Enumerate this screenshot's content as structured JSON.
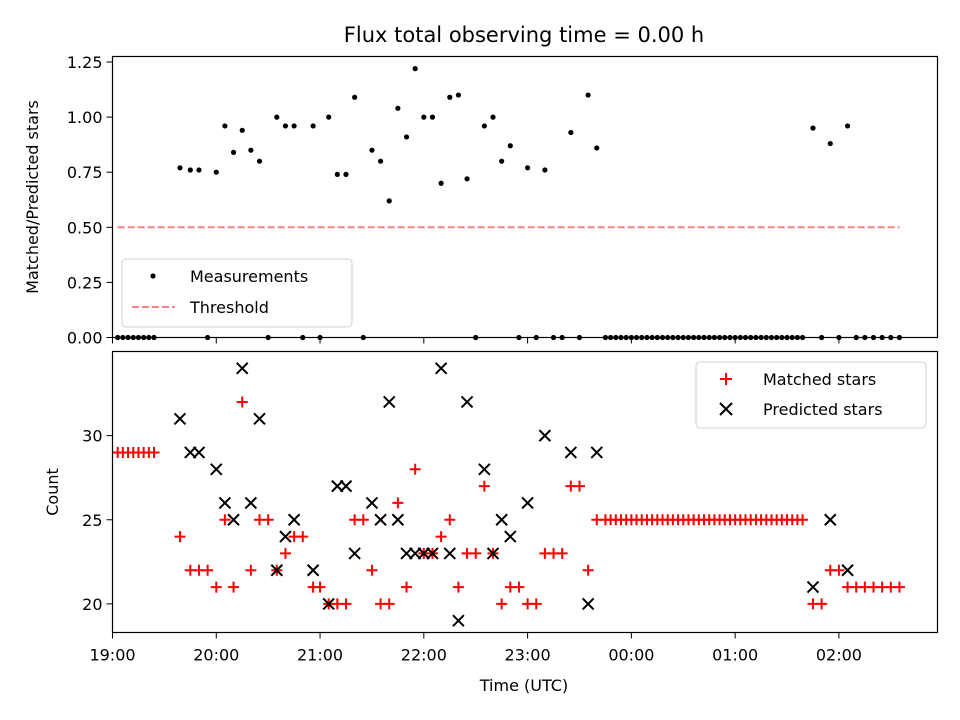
{
  "chart_data": [
    {
      "type": "scatter",
      "title": "Flux total observing time = 0.00 h",
      "xlabel": "",
      "ylabel": "Matched/Predicted stars",
      "xlim": [
        "19:00",
        "02:57"
      ],
      "ylim": [
        0,
        1.275
      ],
      "yticks": [
        "0.00",
        "0.25",
        "0.50",
        "0.75",
        "1.00",
        "1.25"
      ],
      "legend": {
        "placement": "lower-left",
        "entries": [
          "Measurements",
          "Threshold"
        ]
      },
      "series": [
        {
          "name": "Measurements",
          "marker": "dot",
          "color": "#000000",
          "points": [
            [
              "19:03",
              0
            ],
            [
              "19:06",
              0
            ],
            [
              "19:09",
              0
            ],
            [
              "19:12",
              0
            ],
            [
              "19:15",
              0
            ],
            [
              "19:18",
              0
            ],
            [
              "19:21",
              0
            ],
            [
              "19:24",
              0
            ],
            [
              "19:39",
              0.77
            ],
            [
              "19:45",
              0.76
            ],
            [
              "19:50",
              0.76
            ],
            [
              "19:55",
              0
            ],
            [
              "20:00",
              0.75
            ],
            [
              "20:05",
              0.96
            ],
            [
              "20:10",
              0.84
            ],
            [
              "20:15",
              0.94
            ],
            [
              "20:20",
              0.85
            ],
            [
              "20:25",
              0.8
            ],
            [
              "20:30",
              0
            ],
            [
              "20:35",
              1.0
            ],
            [
              "20:40",
              0.96
            ],
            [
              "20:45",
              0.96
            ],
            [
              "20:50",
              0
            ],
            [
              "20:56",
              0.96
            ],
            [
              "21:00",
              0
            ],
            [
              "21:05",
              1.0
            ],
            [
              "21:10",
              0.74
            ],
            [
              "21:15",
              0.74
            ],
            [
              "21:20",
              1.09
            ],
            [
              "21:25",
              0
            ],
            [
              "21:30",
              0.85
            ],
            [
              "21:35",
              0.8
            ],
            [
              "21:40",
              0.62
            ],
            [
              "21:45",
              1.04
            ],
            [
              "21:50",
              0.91
            ],
            [
              "21:55",
              1.22
            ],
            [
              "22:00",
              1.0
            ],
            [
              "22:05",
              1.0
            ],
            [
              "22:10",
              0.7
            ],
            [
              "22:15",
              1.09
            ],
            [
              "22:20",
              1.1
            ],
            [
              "22:25",
              0.72
            ],
            [
              "22:30",
              0
            ],
            [
              "22:35",
              0.96
            ],
            [
              "22:40",
              1.0
            ],
            [
              "22:45",
              0.8
            ],
            [
              "22:50",
              0.87
            ],
            [
              "22:55",
              0
            ],
            [
              "23:00",
              0.77
            ],
            [
              "23:05",
              0
            ],
            [
              "23:10",
              0.76
            ],
            [
              "23:15",
              0
            ],
            [
              "23:20",
              0
            ],
            [
              "23:25",
              0.93
            ],
            [
              "23:30",
              0
            ],
            [
              "23:35",
              1.1
            ],
            [
              "23:40",
              0.86
            ],
            [
              "23:45",
              0
            ],
            [
              "23:48",
              0
            ],
            [
              "23:51",
              0
            ],
            [
              "23:54",
              0
            ],
            [
              "23:57",
              0
            ],
            [
              "00:00",
              0
            ],
            [
              "00:03",
              0
            ],
            [
              "00:06",
              0
            ],
            [
              "00:09",
              0
            ],
            [
              "00:12",
              0
            ],
            [
              "00:15",
              0
            ],
            [
              "00:18",
              0
            ],
            [
              "00:21",
              0
            ],
            [
              "00:24",
              0
            ],
            [
              "00:27",
              0
            ],
            [
              "00:30",
              0
            ],
            [
              "00:33",
              0
            ],
            [
              "00:36",
              0
            ],
            [
              "00:39",
              0
            ],
            [
              "00:42",
              0
            ],
            [
              "00:45",
              0
            ],
            [
              "00:48",
              0
            ],
            [
              "00:51",
              0
            ],
            [
              "00:54",
              0
            ],
            [
              "00:57",
              0
            ],
            [
              "01:00",
              0
            ],
            [
              "01:03",
              0
            ],
            [
              "01:06",
              0
            ],
            [
              "01:09",
              0
            ],
            [
              "01:12",
              0
            ],
            [
              "01:15",
              0
            ],
            [
              "01:18",
              0
            ],
            [
              "01:21",
              0
            ],
            [
              "01:24",
              0
            ],
            [
              "01:27",
              0
            ],
            [
              "01:30",
              0
            ],
            [
              "01:33",
              0
            ],
            [
              "01:36",
              0
            ],
            [
              "01:39",
              0
            ],
            [
              "01:45",
              0.95
            ],
            [
              "01:50",
              0
            ],
            [
              "01:55",
              0.88
            ],
            [
              "02:00",
              0
            ],
            [
              "02:05",
              0.96
            ],
            [
              "02:10",
              0
            ],
            [
              "02:15",
              0
            ],
            [
              "02:20",
              0
            ],
            [
              "02:25",
              0
            ],
            [
              "02:30",
              0
            ],
            [
              "02:35",
              0
            ]
          ]
        },
        {
          "name": "Threshold",
          "marker": "dashed-line",
          "color": "#ff8080",
          "points": [
            [
              "19:03",
              0.5
            ],
            [
              "02:35",
              0.5
            ]
          ]
        }
      ]
    },
    {
      "type": "scatter",
      "title": "",
      "xlabel": "Time (UTC)",
      "ylabel": "Count",
      "xlim": [
        "19:00",
        "02:57"
      ],
      "ylim": [
        18.3,
        35.0
      ],
      "xticks": [
        "19:00",
        "20:00",
        "21:00",
        "22:00",
        "23:00",
        "00:00",
        "01:00",
        "02:00"
      ],
      "yticks": [
        "20",
        "25",
        "30"
      ],
      "legend": {
        "placement": "top-right",
        "entries": [
          "Matched stars",
          "Predicted stars"
        ]
      },
      "series": [
        {
          "name": "Matched stars",
          "marker": "plus",
          "color": "#ff0000",
          "points": [
            [
              "19:03",
              29
            ],
            [
              "19:06",
              29
            ],
            [
              "19:09",
              29
            ],
            [
              "19:12",
              29
            ],
            [
              "19:15",
              29
            ],
            [
              "19:18",
              29
            ],
            [
              "19:21",
              29
            ],
            [
              "19:24",
              29
            ],
            [
              "19:39",
              24
            ],
            [
              "19:45",
              22
            ],
            [
              "19:50",
              22
            ],
            [
              "19:55",
              22
            ],
            [
              "20:00",
              21
            ],
            [
              "20:05",
              25
            ],
            [
              "20:10",
              21
            ],
            [
              "20:15",
              32
            ],
            [
              "20:20",
              22
            ],
            [
              "20:25",
              25
            ],
            [
              "20:30",
              25
            ],
            [
              "20:35",
              22
            ],
            [
              "20:40",
              23
            ],
            [
              "20:45",
              24
            ],
            [
              "20:50",
              24
            ],
            [
              "20:56",
              21
            ],
            [
              "21:00",
              21
            ],
            [
              "21:05",
              20
            ],
            [
              "21:10",
              20
            ],
            [
              "21:15",
              20
            ],
            [
              "21:20",
              25
            ],
            [
              "21:25",
              25
            ],
            [
              "21:30",
              22
            ],
            [
              "21:35",
              20
            ],
            [
              "21:40",
              20
            ],
            [
              "21:45",
              26
            ],
            [
              "21:50",
              21
            ],
            [
              "21:55",
              28
            ],
            [
              "22:00",
              23
            ],
            [
              "22:05",
              23
            ],
            [
              "22:10",
              24
            ],
            [
              "22:15",
              25
            ],
            [
              "22:20",
              21
            ],
            [
              "22:25",
              23
            ],
            [
              "22:30",
              23
            ],
            [
              "22:35",
              27
            ],
            [
              "22:40",
              23
            ],
            [
              "22:45",
              20
            ],
            [
              "22:50",
              21
            ],
            [
              "22:55",
              21
            ],
            [
              "23:00",
              20
            ],
            [
              "23:05",
              20
            ],
            [
              "23:10",
              23
            ],
            [
              "23:15",
              23
            ],
            [
              "23:20",
              23
            ],
            [
              "23:25",
              27
            ],
            [
              "23:30",
              27
            ],
            [
              "23:35",
              22
            ],
            [
              "23:40",
              25
            ],
            [
              "23:45",
              25
            ],
            [
              "23:48",
              25
            ],
            [
              "23:51",
              25
            ],
            [
              "23:54",
              25
            ],
            [
              "23:57",
              25
            ],
            [
              "00:00",
              25
            ],
            [
              "00:03",
              25
            ],
            [
              "00:06",
              25
            ],
            [
              "00:09",
              25
            ],
            [
              "00:12",
              25
            ],
            [
              "00:15",
              25
            ],
            [
              "00:18",
              25
            ],
            [
              "00:21",
              25
            ],
            [
              "00:24",
              25
            ],
            [
              "00:27",
              25
            ],
            [
              "00:30",
              25
            ],
            [
              "00:33",
              25
            ],
            [
              "00:36",
              25
            ],
            [
              "00:39",
              25
            ],
            [
              "00:42",
              25
            ],
            [
              "00:45",
              25
            ],
            [
              "00:48",
              25
            ],
            [
              "00:51",
              25
            ],
            [
              "00:54",
              25
            ],
            [
              "00:57",
              25
            ],
            [
              "01:00",
              25
            ],
            [
              "01:03",
              25
            ],
            [
              "01:06",
              25
            ],
            [
              "01:09",
              25
            ],
            [
              "01:12",
              25
            ],
            [
              "01:15",
              25
            ],
            [
              "01:18",
              25
            ],
            [
              "01:21",
              25
            ],
            [
              "01:24",
              25
            ],
            [
              "01:27",
              25
            ],
            [
              "01:30",
              25
            ],
            [
              "01:33",
              25
            ],
            [
              "01:36",
              25
            ],
            [
              "01:39",
              25
            ],
            [
              "01:45",
              20
            ],
            [
              "01:50",
              20
            ],
            [
              "01:55",
              22
            ],
            [
              "02:00",
              22
            ],
            [
              "02:05",
              21
            ],
            [
              "02:10",
              21
            ],
            [
              "02:15",
              21
            ],
            [
              "02:20",
              21
            ],
            [
              "02:25",
              21
            ],
            [
              "02:30",
              21
            ],
            [
              "02:35",
              21
            ]
          ]
        },
        {
          "name": "Predicted stars",
          "marker": "x",
          "color": "#000000",
          "points": [
            [
              "19:39",
              31
            ],
            [
              "19:45",
              29
            ],
            [
              "19:50",
              29
            ],
            [
              "20:00",
              28
            ],
            [
              "20:05",
              26
            ],
            [
              "20:10",
              25
            ],
            [
              "20:15",
              34
            ],
            [
              "20:20",
              26
            ],
            [
              "20:25",
              31
            ],
            [
              "20:35",
              22
            ],
            [
              "20:40",
              24
            ],
            [
              "20:45",
              25
            ],
            [
              "20:56",
              22
            ],
            [
              "21:05",
              20
            ],
            [
              "21:10",
              27
            ],
            [
              "21:15",
              27
            ],
            [
              "21:20",
              23
            ],
            [
              "21:30",
              26
            ],
            [
              "21:35",
              25
            ],
            [
              "21:40",
              32
            ],
            [
              "21:45",
              25
            ],
            [
              "21:50",
              23
            ],
            [
              "21:55",
              23
            ],
            [
              "22:00",
              23
            ],
            [
              "22:05",
              23
            ],
            [
              "22:10",
              34
            ],
            [
              "22:15",
              23
            ],
            [
              "22:20",
              19
            ],
            [
              "22:25",
              32
            ],
            [
              "22:35",
              28
            ],
            [
              "22:40",
              23
            ],
            [
              "22:45",
              25
            ],
            [
              "22:50",
              24
            ],
            [
              "23:00",
              26
            ],
            [
              "23:10",
              30
            ],
            [
              "23:25",
              29
            ],
            [
              "23:35",
              20
            ],
            [
              "23:40",
              29
            ],
            [
              "01:45",
              21
            ],
            [
              "01:55",
              25
            ],
            [
              "02:05",
              22
            ]
          ]
        }
      ]
    }
  ]
}
